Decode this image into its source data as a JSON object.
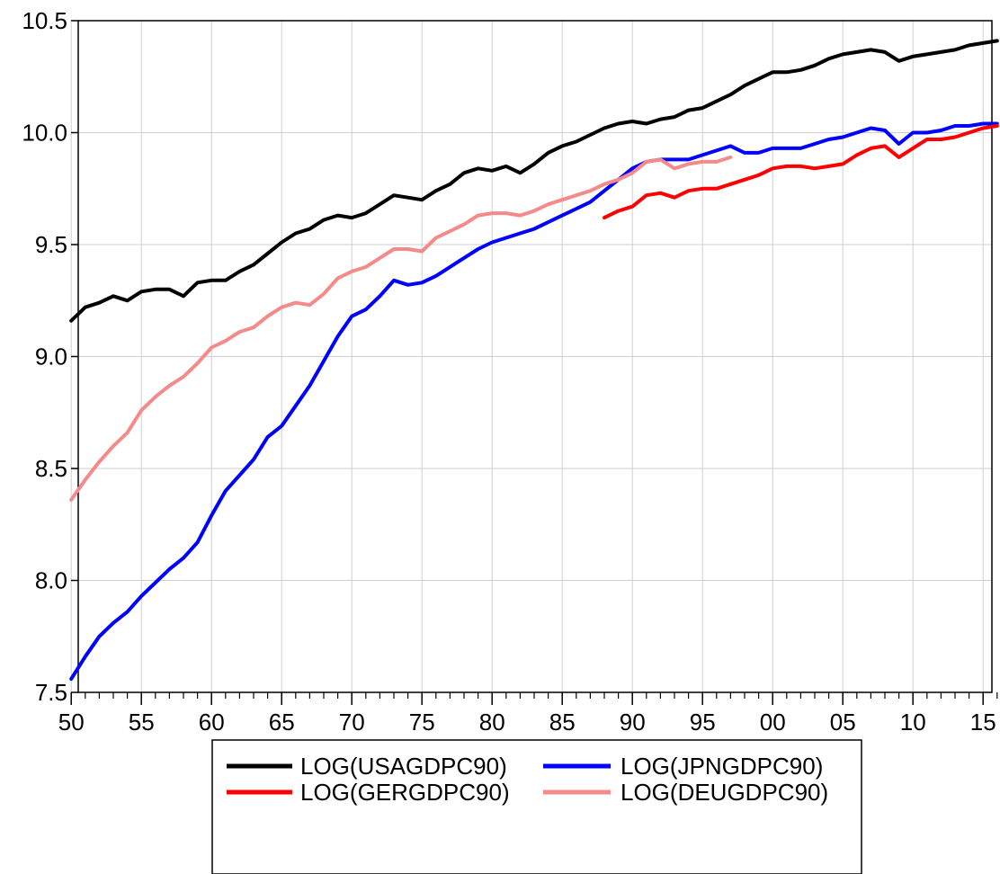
{
  "chart_data": {
    "type": "line",
    "title": "",
    "xlabel": "",
    "ylabel": "",
    "x_range": [
      1950,
      2016
    ],
    "ylim": [
      7.5,
      10.5
    ],
    "grid": true,
    "legend_position": "bottom-center",
    "x_tick_labels": [
      {
        "year": 1950,
        "label": "50"
      },
      {
        "year": 1955,
        "label": "55"
      },
      {
        "year": 1960,
        "label": "60"
      },
      {
        "year": 1965,
        "label": "65"
      },
      {
        "year": 1970,
        "label": "70"
      },
      {
        "year": 1975,
        "label": "75"
      },
      {
        "year": 1980,
        "label": "80"
      },
      {
        "year": 1985,
        "label": "85"
      },
      {
        "year": 1990,
        "label": "90"
      },
      {
        "year": 1995,
        "label": "95"
      },
      {
        "year": 2000,
        "label": "00"
      },
      {
        "year": 2005,
        "label": "05"
      },
      {
        "year": 2010,
        "label": "10"
      },
      {
        "year": 2015,
        "label": "15"
      }
    ],
    "y_tick_labels": [
      {
        "value": 7.5,
        "label": "7.5"
      },
      {
        "value": 8.0,
        "label": "8.0"
      },
      {
        "value": 8.5,
        "label": "8.5"
      },
      {
        "value": 9.0,
        "label": "9.0"
      },
      {
        "value": 9.5,
        "label": "9.5"
      },
      {
        "value": 10.0,
        "label": "10.0"
      },
      {
        "value": 10.5,
        "label": "10.5"
      }
    ],
    "series": [
      {
        "name": "LOG(USAGDPC90)",
        "color": "#000000",
        "start_year": 1950,
        "values": [
          9.16,
          9.22,
          9.24,
          9.27,
          9.25,
          9.29,
          9.3,
          9.3,
          9.27,
          9.33,
          9.34,
          9.34,
          9.38,
          9.41,
          9.46,
          9.51,
          9.55,
          9.57,
          9.61,
          9.63,
          9.62,
          9.64,
          9.68,
          9.72,
          9.71,
          9.7,
          9.74,
          9.77,
          9.82,
          9.84,
          9.83,
          9.85,
          9.82,
          9.86,
          9.91,
          9.94,
          9.96,
          9.99,
          10.02,
          10.04,
          10.05,
          10.04,
          10.06,
          10.07,
          10.1,
          10.11,
          10.14,
          10.17,
          10.21,
          10.24,
          10.27,
          10.27,
          10.28,
          10.3,
          10.33,
          10.35,
          10.36,
          10.37,
          10.36,
          10.32,
          10.34,
          10.35,
          10.36,
          10.37,
          10.39,
          10.4,
          10.41
        ]
      },
      {
        "name": "LOG(JPNGDPC90)",
        "color": "#0000ff",
        "start_year": 1950,
        "values": [
          7.56,
          7.66,
          7.75,
          7.81,
          7.86,
          7.93,
          7.99,
          8.05,
          8.1,
          8.17,
          8.29,
          8.4,
          8.47,
          8.54,
          8.64,
          8.69,
          8.78,
          8.87,
          8.98,
          9.09,
          9.18,
          9.21,
          9.27,
          9.34,
          9.32,
          9.33,
          9.36,
          9.4,
          9.44,
          9.48,
          9.51,
          9.53,
          9.55,
          9.57,
          9.6,
          9.63,
          9.66,
          9.69,
          9.74,
          9.79,
          9.84,
          9.87,
          9.88,
          9.88,
          9.88,
          9.9,
          9.92,
          9.94,
          9.91,
          9.91,
          9.93,
          9.93,
          9.93,
          9.95,
          9.97,
          9.98,
          10.0,
          10.02,
          10.01,
          9.95,
          10.0,
          10.0,
          10.01,
          10.03,
          10.03,
          10.04,
          10.04
        ]
      },
      {
        "name": "LOG(GERGDPC90)",
        "color": "#ff0000",
        "start_year": 1988,
        "values": [
          9.62,
          9.65,
          9.67,
          9.72,
          9.73,
          9.71,
          9.74,
          9.75,
          9.75,
          9.77,
          9.79,
          9.81,
          9.84,
          9.85,
          9.85,
          9.84,
          9.85,
          9.86,
          9.9,
          9.93,
          9.94,
          9.89,
          9.93,
          9.97,
          9.97,
          9.98,
          10.0,
          10.02,
          10.03
        ]
      },
      {
        "name": "LOG(DEUGDPC90)",
        "color": "#f48a8a",
        "start_year": 1950,
        "values": [
          8.36,
          8.45,
          8.53,
          8.6,
          8.66,
          8.76,
          8.82,
          8.87,
          8.91,
          8.97,
          9.04,
          9.07,
          9.11,
          9.13,
          9.18,
          9.22,
          9.24,
          9.23,
          9.28,
          9.35,
          9.38,
          9.4,
          9.44,
          9.48,
          9.48,
          9.47,
          9.53,
          9.56,
          9.59,
          9.63,
          9.64,
          9.64,
          9.63,
          9.65,
          9.68,
          9.7,
          9.72,
          9.74,
          9.77,
          9.79,
          9.82,
          9.87,
          9.88,
          9.84,
          9.86,
          9.87,
          9.87,
          9.89
        ]
      }
    ]
  }
}
